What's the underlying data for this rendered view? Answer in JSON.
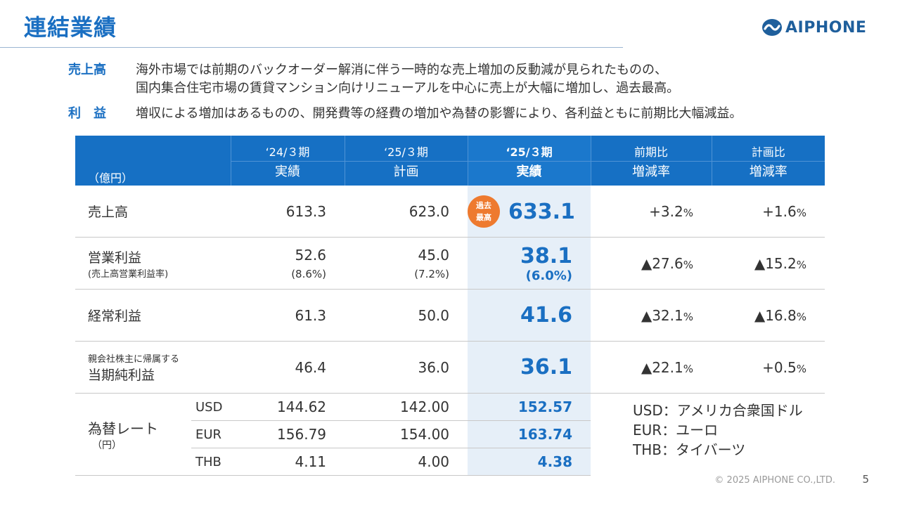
{
  "title": "連結業績",
  "logo": {
    "text": "AIPHONE",
    "color": "#1f5f9c"
  },
  "summary": [
    {
      "label": "売上高",
      "lines": [
        "海外市場では前期のバックオーダー解消に伴う一時的な売上増加の反動減が見られたものの、",
        "国内集合住宅市場の賃貸マンション向けリニューアルを中心に売上が大幅に増加し、過去最高。"
      ]
    },
    {
      "label": "利　益",
      "lines": [
        "増収による増加はあるものの、開発費等の経費の増加や為替の影響により、各利益ともに前期比大幅減益。"
      ]
    }
  ],
  "table": {
    "unit": "（億円）",
    "columns": [
      {
        "period": "‘24/３期",
        "sub": "実績"
      },
      {
        "period": "‘25/３期",
        "sub": "計画"
      },
      {
        "period": "‘25/３期",
        "sub": "実績"
      },
      {
        "period": "前期比",
        "sub": "増減率"
      },
      {
        "period": "計画比",
        "sub": "増減率"
      }
    ],
    "rows": [
      {
        "item": "売上高",
        "prev": "613.3",
        "plan": "623.0",
        "actual": "633.1",
        "badge": [
          "過去",
          "最高"
        ],
        "yoy": "+3.2",
        "vs_plan": "+1.6"
      },
      {
        "item": "営業利益",
        "item_note": "(売上高営業利益率)",
        "prev": "52.6",
        "prev_note": "(8.6%)",
        "plan": "45.0",
        "plan_note": "(7.2%)",
        "actual": "38.1",
        "actual_note": "(6.0%)",
        "yoy": "▲27.6",
        "vs_plan": "▲15.2"
      },
      {
        "item": "経常利益",
        "prev": "61.3",
        "plan": "50.0",
        "actual": "41.6",
        "yoy": "▲32.1",
        "vs_plan": "▲16.8"
      },
      {
        "item": "当期純利益",
        "item_note": "親会社株主に帰属する",
        "prev": "46.4",
        "plan": "36.0",
        "actual": "36.1",
        "yoy": "▲22.1",
        "vs_plan": "+0.5"
      }
    ],
    "pct_sign": "%",
    "fx": {
      "label": "為替レート",
      "unit": "（円）",
      "rows": [
        {
          "currency": "USD",
          "prev": "144.62",
          "plan": "142.00",
          "actual": "152.57"
        },
        {
          "currency": "EUR",
          "prev": "156.79",
          "plan": "154.00",
          "actual": "163.74"
        },
        {
          "currency": "THB",
          "prev": "4.11",
          "plan": "4.00",
          "actual": "4.38"
        }
      ],
      "legend": [
        "USD：アメリカ合衆国ドル",
        "EUR：ユーロ",
        "THB：タイバーツ"
      ]
    }
  },
  "footer": {
    "copyright": "© 2025 AIPHONE CO.,LTD.",
    "page": "5"
  },
  "colors": {
    "accent": "#1a6fc2",
    "header_bg": "#1670c4",
    "highlight_bg": "#e6eff8",
    "badge": "#ee7a2f"
  }
}
